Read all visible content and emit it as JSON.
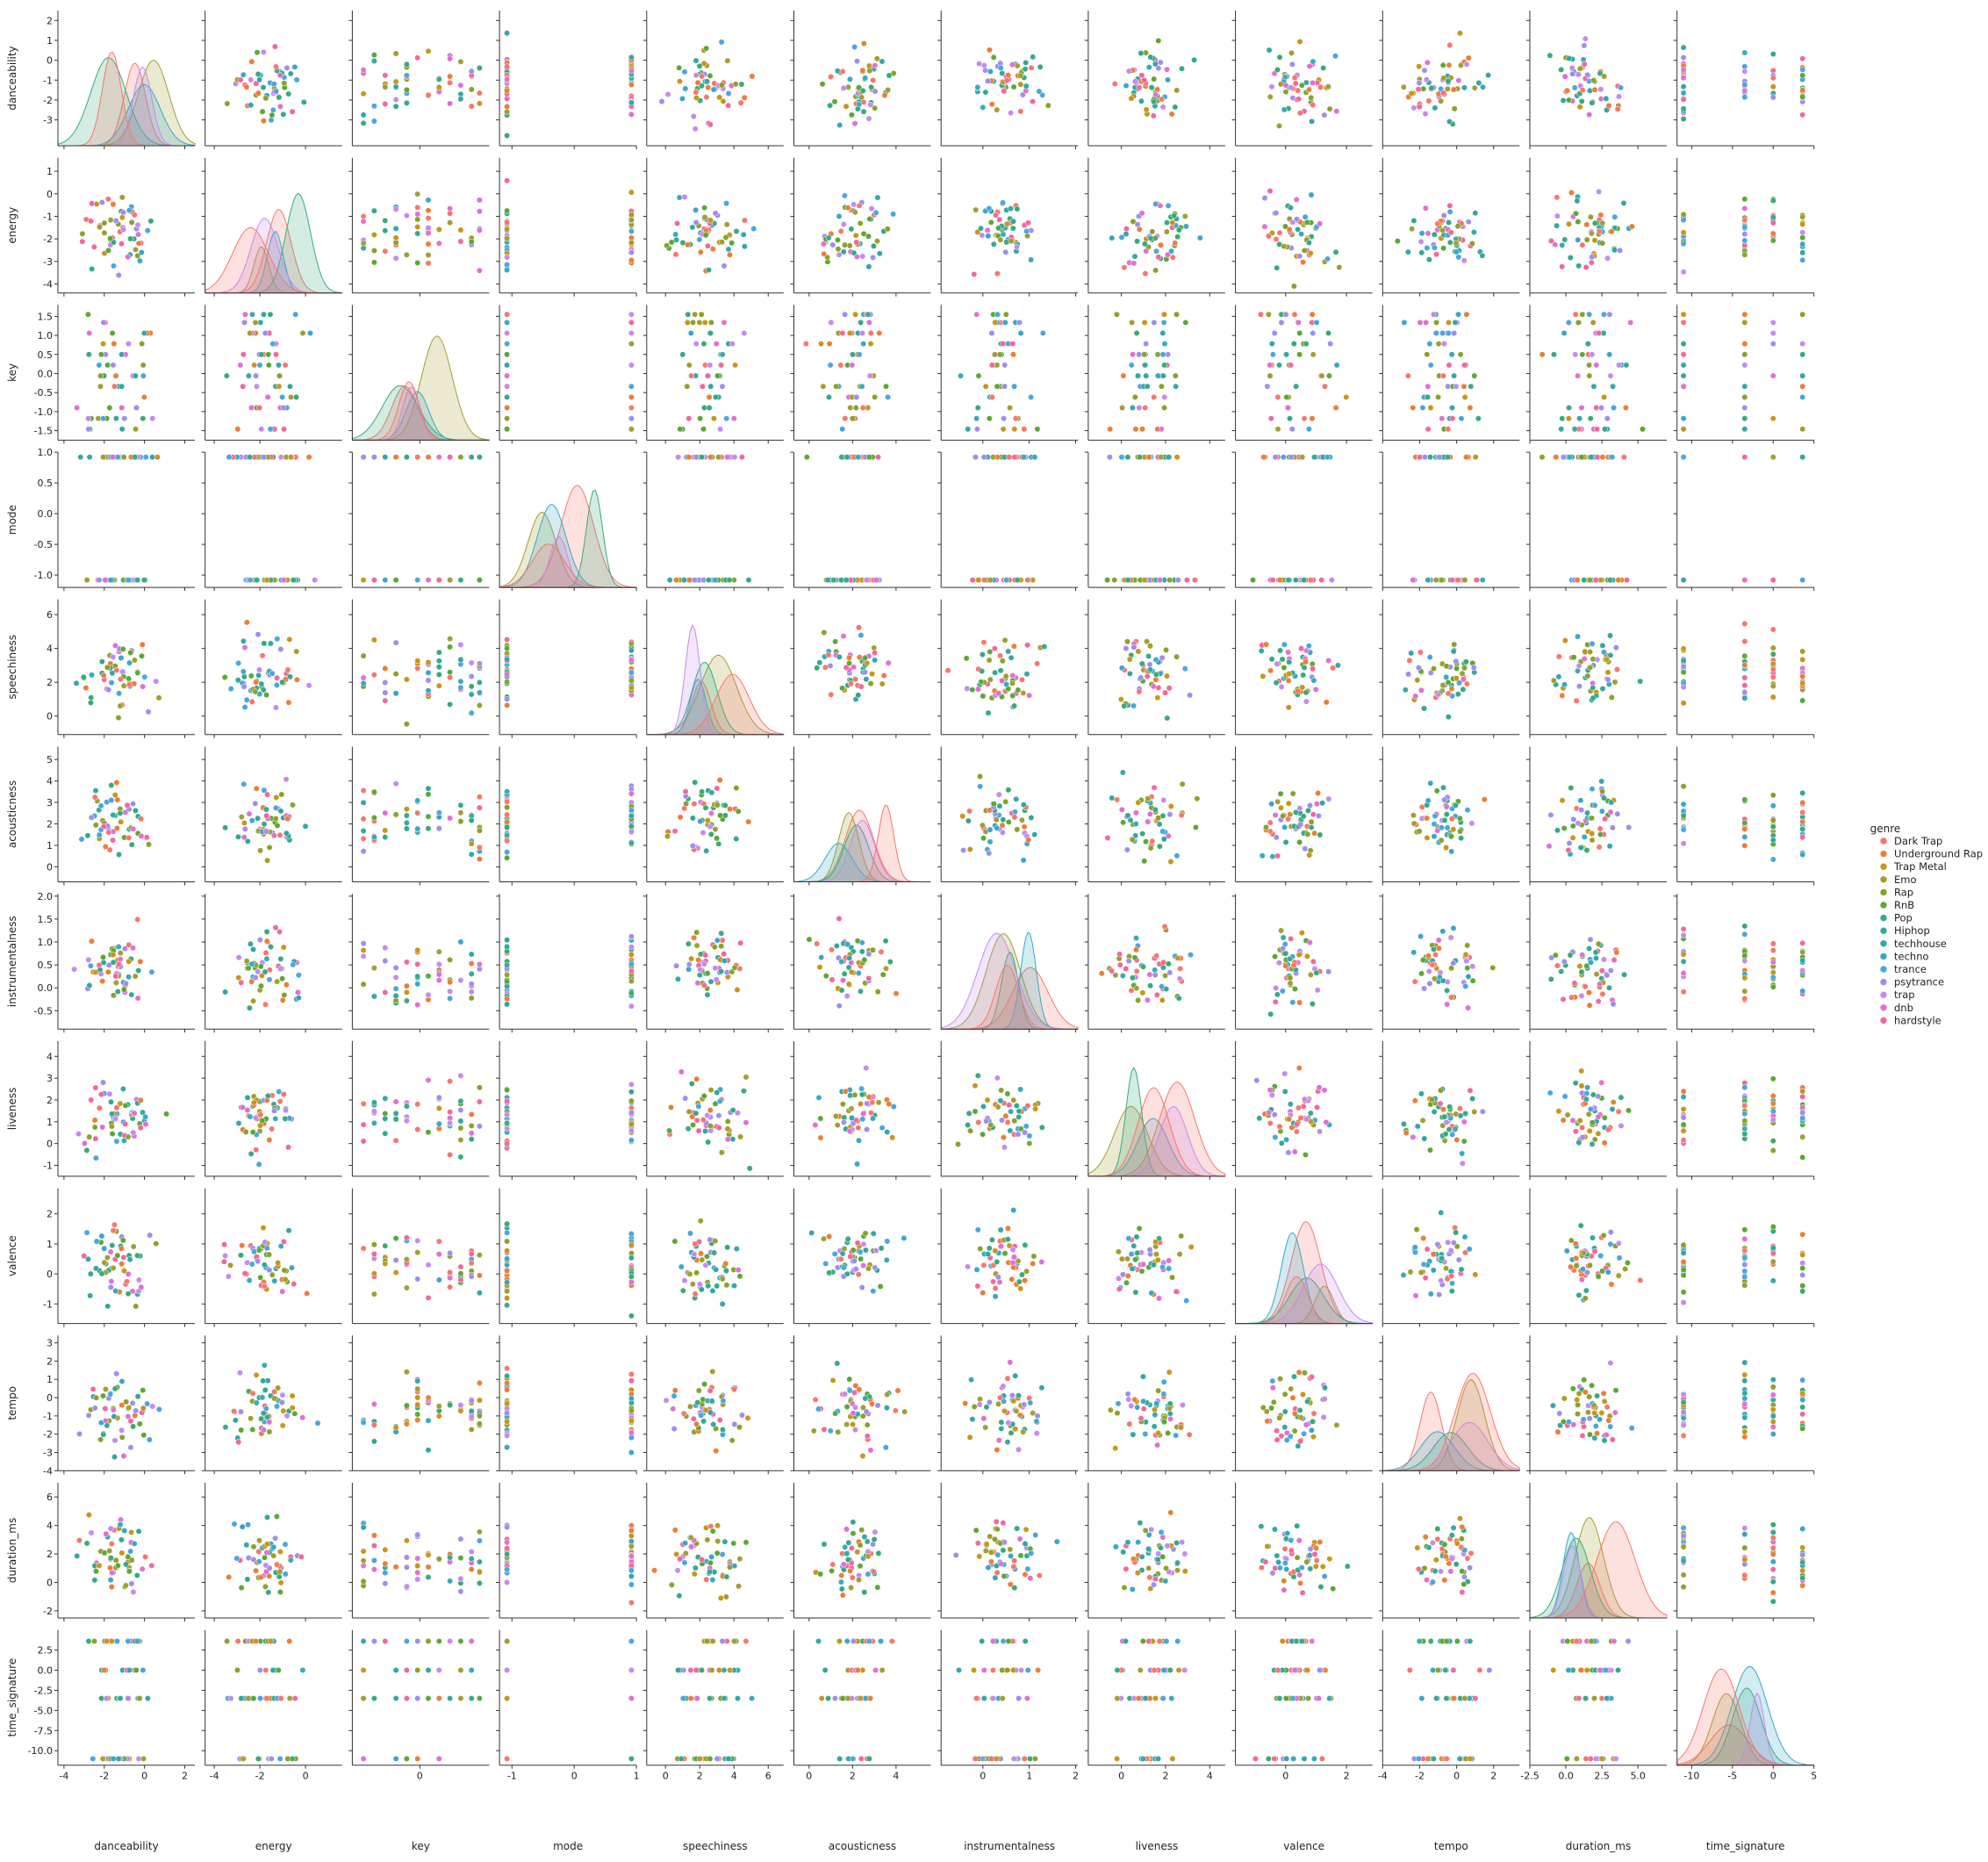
{
  "chart_data": {
    "type": "pairplot",
    "variables": [
      "danceability",
      "energy",
      "key",
      "mode",
      "speechiness",
      "acousticness",
      "instrumentalness",
      "liveness",
      "valence",
      "tempo",
      "duration_ms",
      "time_signature"
    ],
    "ranges": {
      "danceability": [
        -4.3,
        2.5
      ],
      "energy": [
        -4.4,
        1.6
      ],
      "key": [
        -1.75,
        1.8
      ],
      "mode": [
        -1.2,
        1.0
      ],
      "speechiness": [
        -1.1,
        6.9
      ],
      "acousticness": [
        -0.7,
        5.6
      ],
      "instrumentalness": [
        -0.9,
        2.05
      ],
      "liveness": [
        -1.5,
        4.7
      ],
      "valence": [
        -1.65,
        2.85
      ],
      "tempo": [
        -4.0,
        3.4
      ],
      "duration_ms": [
        -2.5,
        7.0
      ],
      "time_signature": [
        -11.8,
        5.0
      ]
    },
    "ticks": {
      "danceability": [
        -4,
        -2,
        0,
        2
      ],
      "energy": [
        -4,
        -3,
        -2,
        -1,
        0,
        1
      ],
      "key": [
        -1.5,
        -1.0,
        -0.5,
        0.0,
        0.5,
        1.0,
        1.5
      ],
      "mode": [
        -1.0,
        -0.5,
        0.0,
        0.5
      ],
      "speechiness": [
        0,
        2,
        4,
        6
      ],
      "acousticness": [
        -1,
        0,
        1,
        2,
        3,
        4,
        5
      ],
      "instrumentalness": [
        -0.5,
        0.0,
        0.5,
        1.0,
        1.5,
        2.0
      ],
      "liveness": [
        -1,
        0,
        1,
        2,
        3,
        4
      ],
      "valence": [
        -1,
        0,
        1,
        2
      ],
      "tempo": [
        -4,
        -3,
        -2,
        -1,
        0,
        1,
        2,
        3
      ],
      "duration_ms": [
        -2,
        0,
        2,
        4,
        6
      ],
      "time_signature": [
        -10.0,
        -7.5,
        -5.0,
        -2.5,
        0.0,
        2.5
      ]
    },
    "x_ticks": {
      "danceability": [
        "-4",
        "-2",
        "0",
        "2"
      ],
      "energy": [
        "-4",
        "-2",
        "0",
        "2"
      ],
      "key": [
        "-2",
        "0",
        "2"
      ],
      "mode": [
        "-2",
        "-1",
        "0",
        "1"
      ],
      "speechiness": [
        "-2",
        "0",
        "2",
        "4",
        "6"
      ],
      "acousticness": [
        "-2",
        "0",
        "2",
        "4",
        "6"
      ],
      "instrumentalness": [
        "-1",
        "0",
        "1",
        "2"
      ],
      "liveness": [
        "-2",
        "0",
        "2",
        "4"
      ],
      "valence": [
        "-2",
        "0",
        "2"
      ],
      "tempo": [
        "-4",
        "-2",
        "0",
        "2"
      ],
      "duration_ms": [
        "-2.5",
        "0.0",
        "2.5",
        "5.0"
      ],
      "time_signature": [
        "-10",
        "-5",
        "0",
        "5"
      ]
    },
    "y_ticks": {
      "danceability": [
        "-3",
        "-2",
        "-1",
        "0",
        "1",
        "2"
      ],
      "energy": [
        "-4",
        "-3",
        "-2",
        "-1",
        "0",
        "1"
      ],
      "key": [
        "-1.5",
        "-1.0",
        "-0.5",
        "0.0",
        "0.5",
        "1.0",
        "1.5"
      ],
      "mode": [
        "-1.0",
        "-0.5",
        "0.0",
        "0.5",
        "1.0"
      ],
      "speechiness": [
        "0",
        "2",
        "4",
        "6"
      ],
      "acousticness": [
        "0",
        "1",
        "2",
        "3",
        "4",
        "5"
      ],
      "instrumentalness": [
        "-0.5",
        "0.0",
        "0.5",
        "1.0",
        "1.5",
        "2.0"
      ],
      "liveness": [
        "-1",
        "0",
        "1",
        "2",
        "3",
        "4"
      ],
      "valence": [
        "-1",
        "0",
        "1",
        "2"
      ],
      "tempo": [
        "-4",
        "-3",
        "-2",
        "-1",
        "0",
        "1",
        "2",
        "3"
      ],
      "duration_ms": [
        "-2",
        "0",
        "2",
        "4",
        "6"
      ],
      "time_signature": [
        "-10.0",
        "-7.5",
        "-5.0",
        "-2.5",
        "0.0",
        "2.5"
      ]
    },
    "discrete_values": {
      "key": [
        -1.46,
        -1.18,
        -0.9,
        -0.62,
        -0.34,
        -0.06,
        0.22,
        0.5,
        0.78,
        1.06,
        1.34,
        1.55
      ],
      "mode": [
        -1.08,
        0.92
      ],
      "time_signature": [
        -11.0,
        -3.5,
        0.0,
        3.6
      ]
    },
    "legend": {
      "title": "genre",
      "placement": "right",
      "entries": [
        {
          "name": "Dark Trap",
          "color": "#f8766d"
        },
        {
          "name": "Underground Rap",
          "color": "#ec7e36"
        },
        {
          "name": "Trap Metal",
          "color": "#c8961a"
        },
        {
          "name": "Emo",
          "color": "#a39e2f"
        },
        {
          "name": "Rap",
          "color": "#8aa229"
        },
        {
          "name": "RnB",
          "color": "#5aa935"
        },
        {
          "name": "Pop",
          "color": "#36ab7a"
        },
        {
          "name": "Hiphop",
          "color": "#33a994"
        },
        {
          "name": "techhouse",
          "color": "#35a7a7"
        },
        {
          "name": "techno",
          "color": "#38a9c5"
        },
        {
          "name": "trance",
          "color": "#49a6e0"
        },
        {
          "name": "psytrance",
          "color": "#9d8ef0"
        },
        {
          "name": "trap",
          "color": "#c58af0"
        },
        {
          "name": "dnb",
          "color": "#e26fd4"
        },
        {
          "name": "hardstyle",
          "color": "#f4679e"
        }
      ]
    },
    "grid": false
  }
}
